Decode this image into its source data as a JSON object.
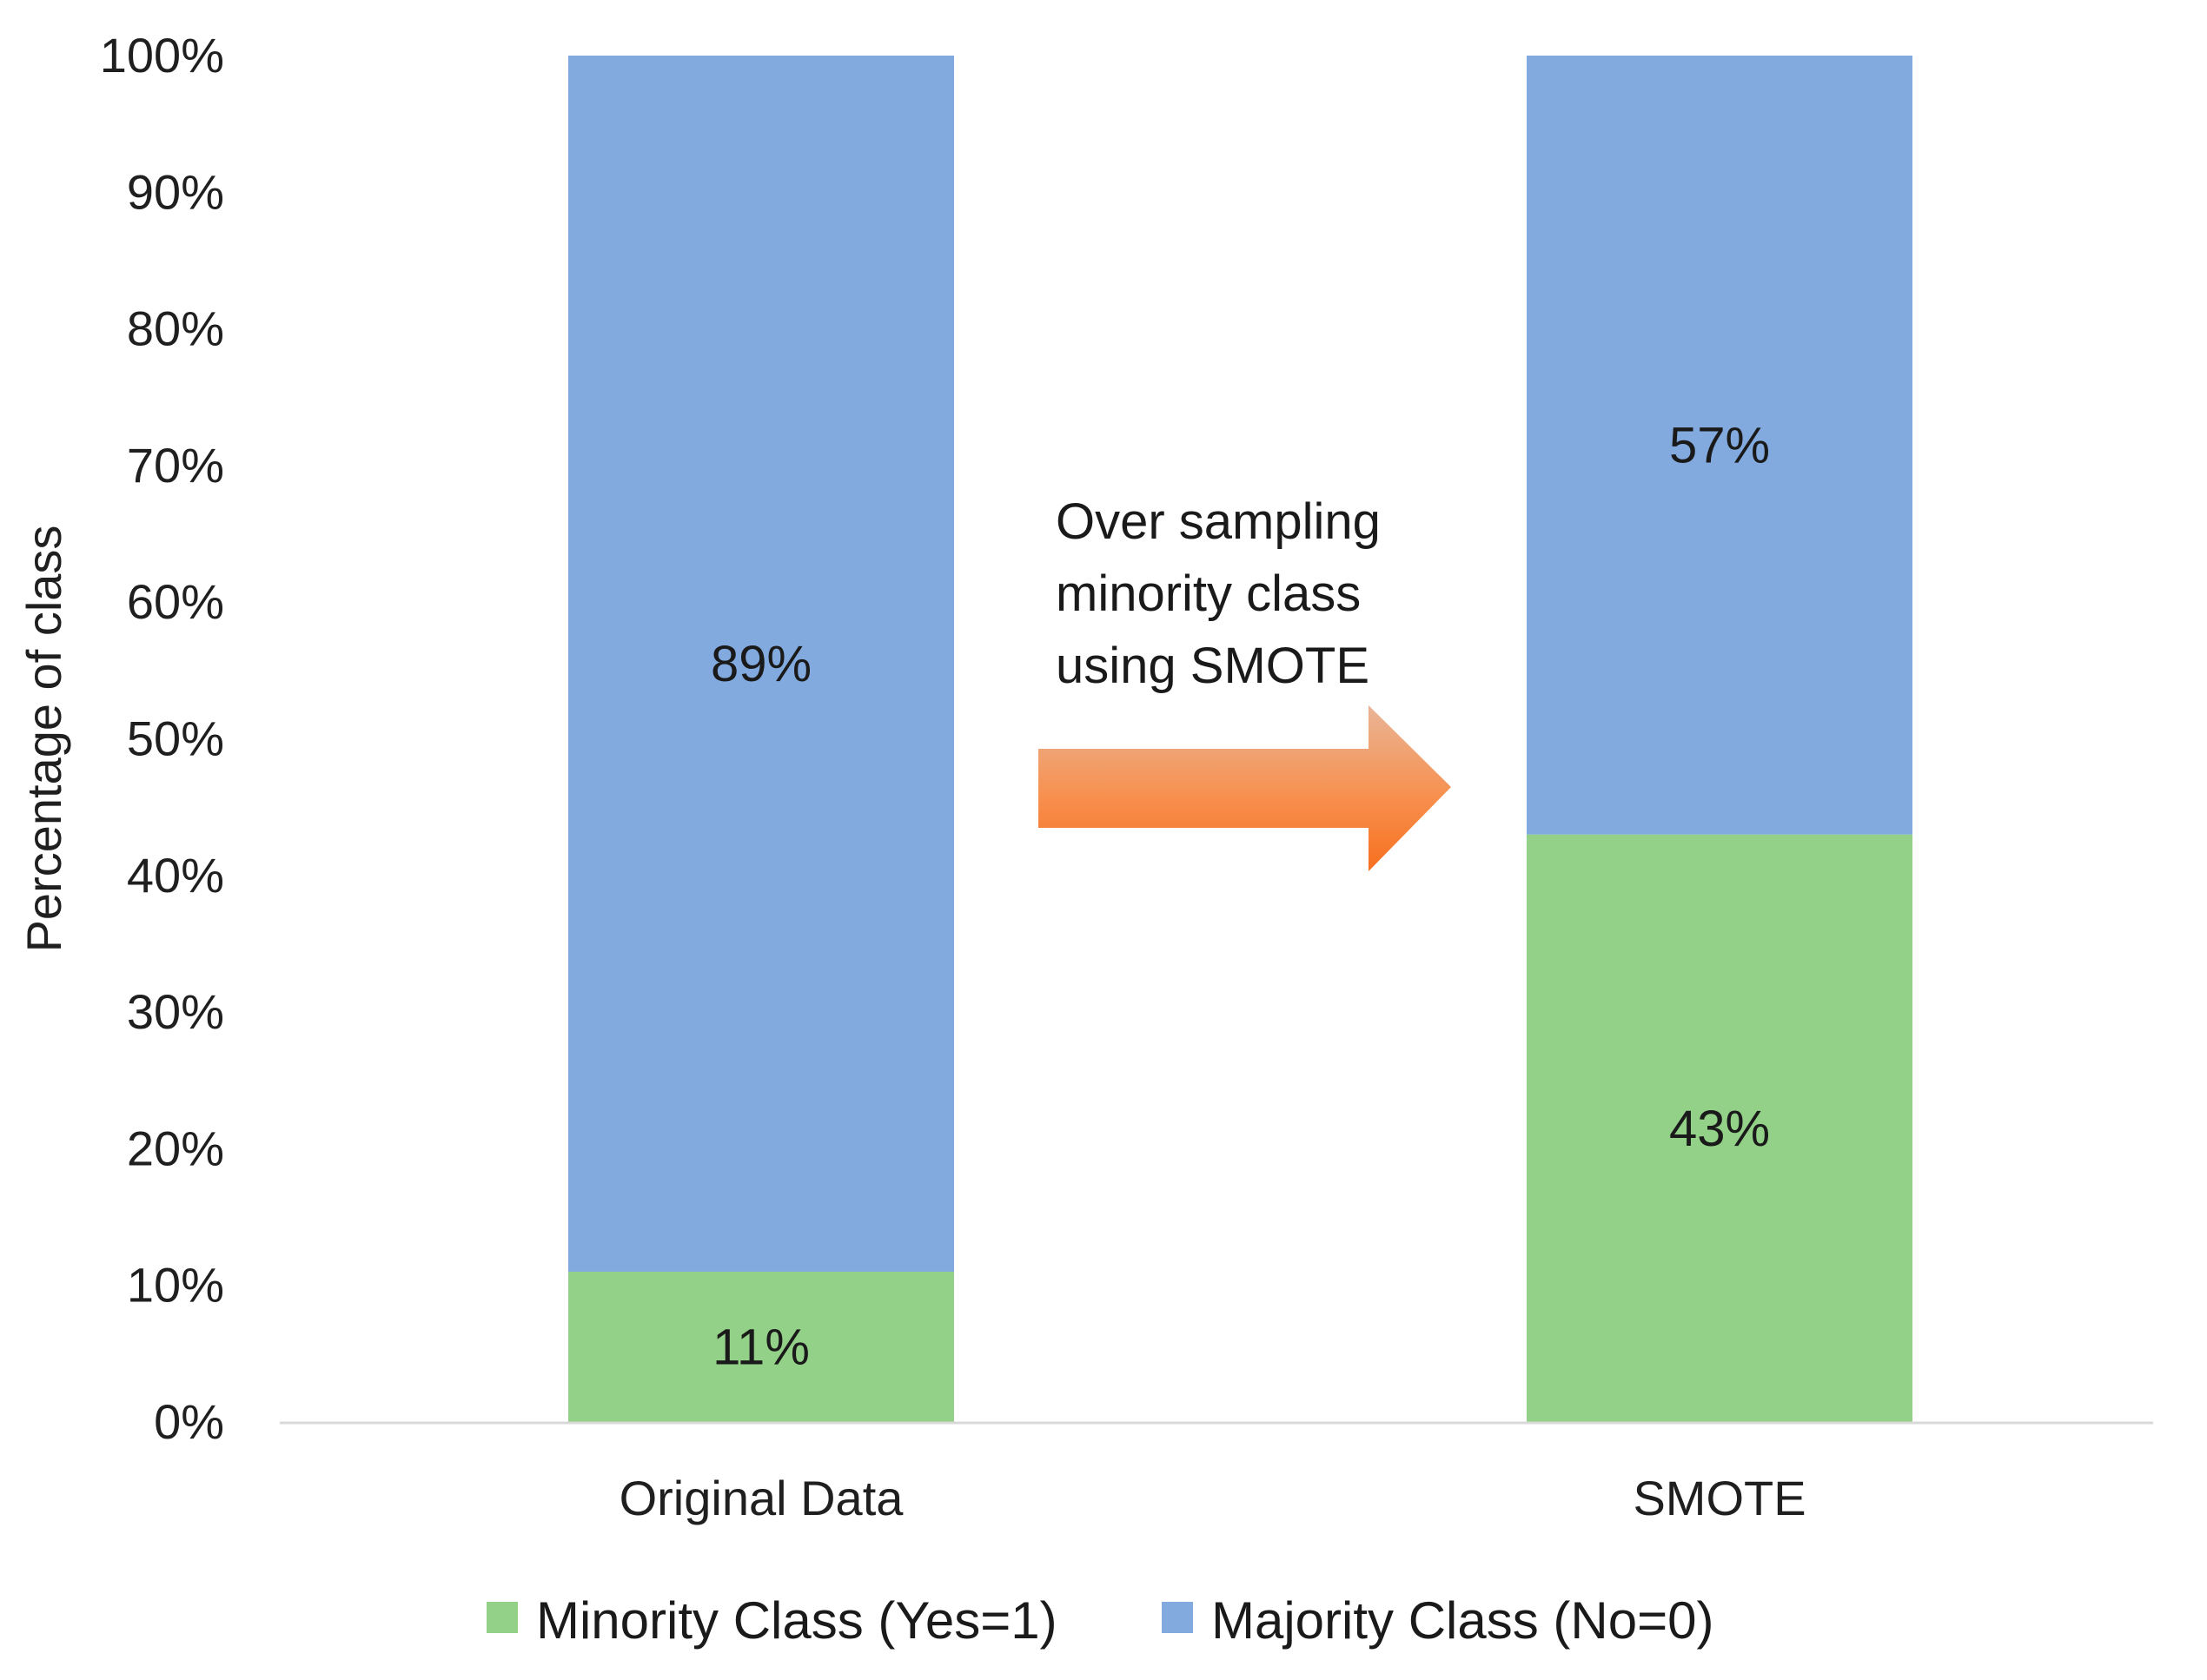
{
  "chart_data": {
    "type": "bar",
    "stacked": true,
    "categories": [
      "Original Data",
      "SMOTE"
    ],
    "series": [
      {
        "name": "Minority Class (Yes=1)",
        "values": [
          11,
          43
        ],
        "labels": [
          "11%",
          "43%"
        ],
        "color": "#93d188"
      },
      {
        "name": "Majority Class (No=0)",
        "values": [
          89,
          57
        ],
        "labels": [
          "89%",
          "57%"
        ],
        "color": "#82aadf"
      }
    ],
    "title": "",
    "xlabel": "",
    "ylabel": "Percentage of class",
    "ylim": [
      0,
      100
    ],
    "yticks": [
      0,
      10,
      20,
      30,
      40,
      50,
      60,
      70,
      80,
      90,
      100
    ],
    "ytick_labels": [
      "0%",
      "10%",
      "20%",
      "30%",
      "40%",
      "50%",
      "60%",
      "70%",
      "80%",
      "90%",
      "100%"
    ],
    "grid": false,
    "legend_position": "bottom",
    "annotation": {
      "lines": [
        "Over sampling",
        "minority class",
        "using SMOTE"
      ],
      "arrow_color": "#f7843f"
    }
  }
}
